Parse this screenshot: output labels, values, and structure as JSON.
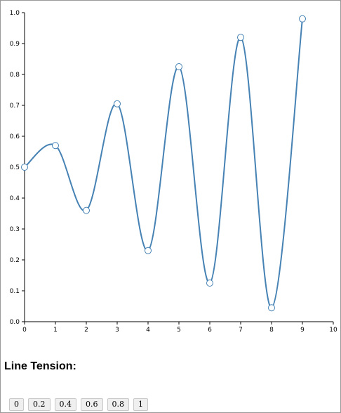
{
  "chart_data": {
    "type": "line",
    "x": [
      0,
      1,
      2,
      3,
      4,
      5,
      6,
      7,
      8,
      9
    ],
    "series": [
      {
        "values": [
          0.5,
          0.57,
          0.36,
          0.705,
          0.23,
          0.825,
          0.125,
          0.92,
          0.045,
          0.98
        ]
      }
    ],
    "xlim": [
      0,
      10
    ],
    "ylim": [
      0,
      1.0
    ],
    "xticks": [
      "0",
      "1",
      "2",
      "3",
      "4",
      "5",
      "6",
      "7",
      "8",
      "9",
      "10"
    ],
    "yticks": [
      "0.0",
      "0.1",
      "0.2",
      "0.3",
      "0.4",
      "0.5",
      "0.6",
      "0.7",
      "0.8",
      "0.9",
      "1.0"
    ],
    "grid": false,
    "line_color": "#4682b4",
    "marker_fill": "#ffffff"
  },
  "controls": {
    "title": "Line Tension:",
    "buttons": [
      "0",
      "0.2",
      "0.4",
      "0.6",
      "0.8",
      "1"
    ]
  }
}
